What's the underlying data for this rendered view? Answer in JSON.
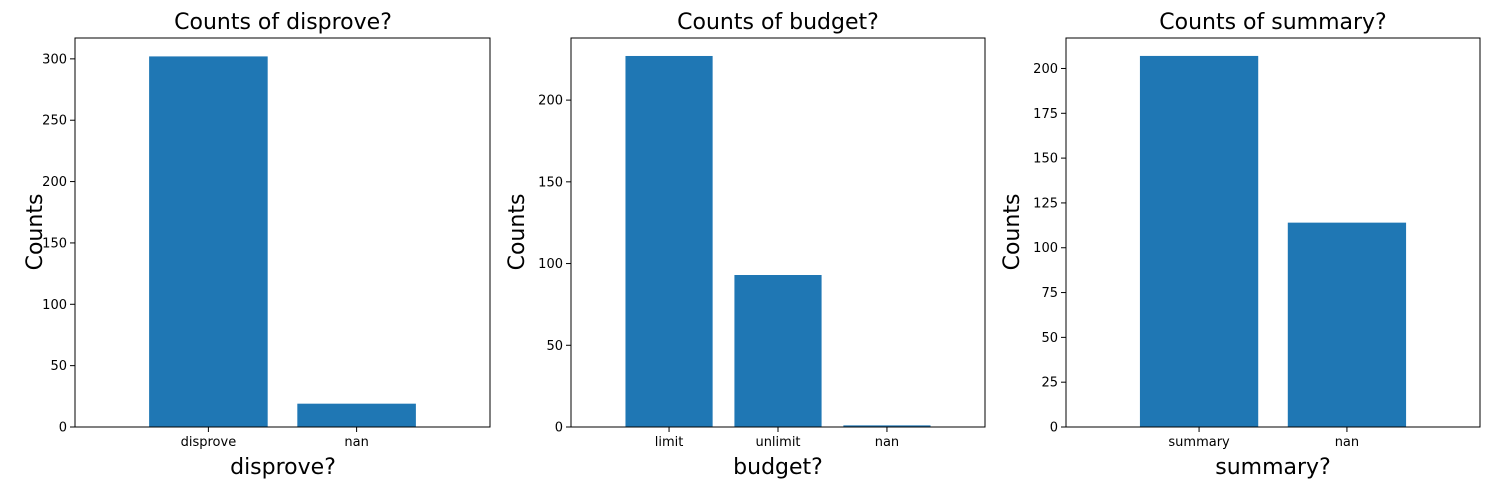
{
  "colors": {
    "bar": "#1f77b4",
    "axis": "#000000",
    "background": "#ffffff"
  },
  "chart_data": [
    {
      "type": "bar",
      "title": "Counts of disprove?",
      "xlabel": "disprove?",
      "ylabel": "Counts",
      "categories": [
        "disprove",
        "nan"
      ],
      "values": [
        302,
        19
      ],
      "ylim": [
        0,
        317
      ],
      "yticks": [
        0,
        50,
        100,
        150,
        200,
        250,
        300
      ],
      "grid": false
    },
    {
      "type": "bar",
      "title": "Counts of budget?",
      "xlabel": "budget?",
      "ylabel": "Counts",
      "categories": [
        "limit",
        "unlimit",
        "nan"
      ],
      "values": [
        227,
        93,
        1
      ],
      "ylim": [
        0,
        238
      ],
      "yticks": [
        0,
        50,
        100,
        150,
        200
      ],
      "grid": false
    },
    {
      "type": "bar",
      "title": "Counts of summary?",
      "xlabel": "summary?",
      "ylabel": "Counts",
      "categories": [
        "summary",
        "nan"
      ],
      "values": [
        207,
        114
      ],
      "ylim": [
        0,
        217
      ],
      "yticks": [
        0,
        25,
        50,
        75,
        100,
        125,
        150,
        175,
        200
      ],
      "grid": false
    }
  ]
}
